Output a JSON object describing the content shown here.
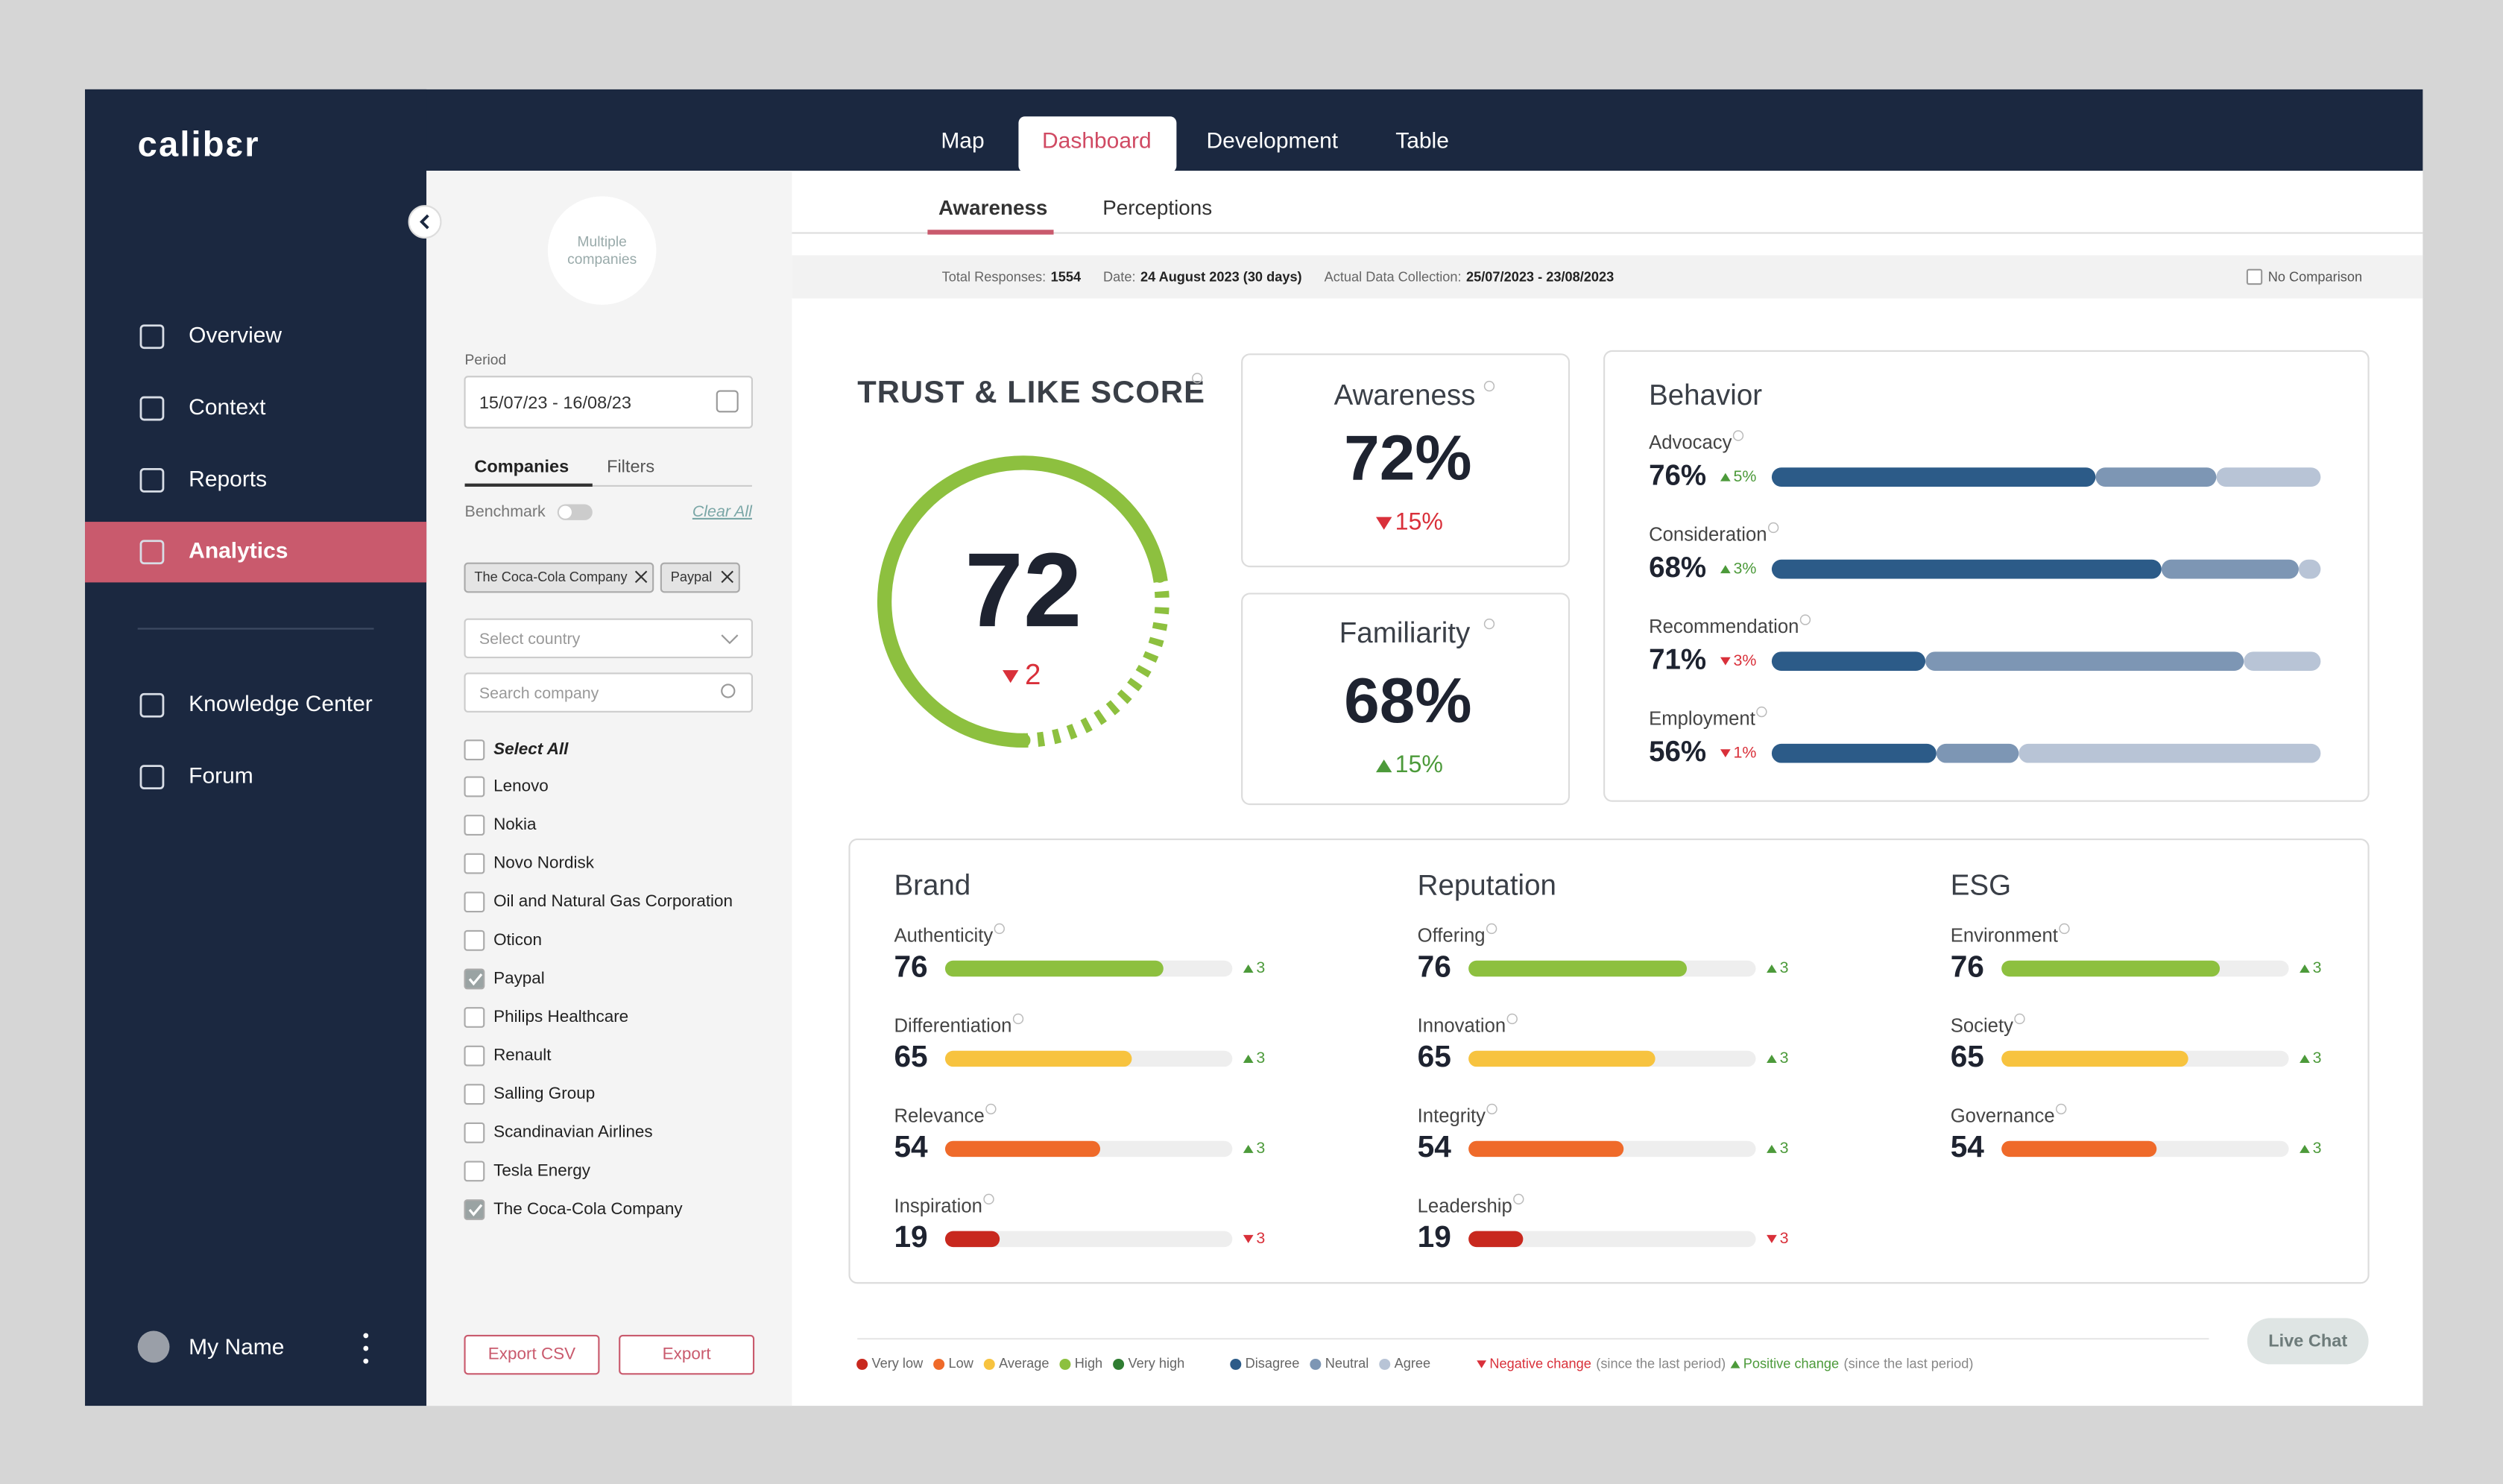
{
  "logo": "calibɛr",
  "sidebar": {
    "nav": [
      "Overview",
      "Context",
      "Reports",
      "Analytics",
      "Knowledge Center",
      "Forum"
    ],
    "active": 3,
    "user": "My Name"
  },
  "tabs": {
    "items": [
      "Map",
      "Dashboard",
      "Development",
      "Table"
    ],
    "active": 1
  },
  "subtabs": {
    "items": [
      "Awareness",
      "Perceptions"
    ],
    "active": 0
  },
  "info": {
    "responses_label": "Total Responses:",
    "responses": "1554",
    "date_label": "Date:",
    "date": "24 August 2023 (30 days)",
    "collection_label": "Actual Data Collection:",
    "collection": "25/07/2023 - 23/08/2023",
    "no_comparison": "No Comparison"
  },
  "filters": {
    "avatar": [
      "Multiple",
      "companies"
    ],
    "period_label": "Period",
    "period": "15/07/23 - 16/08/23",
    "tabs": [
      "Companies",
      "Filters"
    ],
    "benchmark": "Benchmark",
    "clear_all": "Clear All",
    "chips": [
      "The Coca-Cola Company",
      "Paypal"
    ],
    "country_placeholder": "Select country",
    "search_placeholder": "Search company",
    "select_all": "Select All",
    "companies": [
      {
        "name": "Lenovo",
        "checked": false
      },
      {
        "name": "Nokia",
        "checked": false
      },
      {
        "name": "Novo Nordisk",
        "checked": false
      },
      {
        "name": "Oil and Natural Gas Corporation",
        "checked": false
      },
      {
        "name": "Oticon",
        "checked": false
      },
      {
        "name": "Paypal",
        "checked": true
      },
      {
        "name": "Philips Healthcare",
        "checked": false
      },
      {
        "name": "Renault",
        "checked": false
      },
      {
        "name": "Salling Group",
        "checked": false
      },
      {
        "name": "Scandinavian Airlines",
        "checked": false
      },
      {
        "name": "Tesla Energy",
        "checked": false
      },
      {
        "name": "The Coca-Cola Company",
        "checked": true
      }
    ],
    "export_csv": "Export CSV",
    "export": "Export"
  },
  "trust": {
    "title": "TRUST & LIKE SCORE",
    "score": 72,
    "change": "2",
    "direction": "down"
  },
  "awareness": {
    "title": "Awareness",
    "value": "72%",
    "change": "15%",
    "direction": "down"
  },
  "familiarity": {
    "title": "Familiarity",
    "value": "68%",
    "change": "15%",
    "direction": "up"
  },
  "behavior": {
    "title": "Behavior",
    "items": [
      {
        "name": "Advocacy",
        "score": "76%",
        "change": "5%",
        "direction": "up",
        "segments": [
          59,
          22,
          19
        ]
      },
      {
        "name": "Consideration",
        "score": "68%",
        "change": "3%",
        "direction": "up",
        "segments": [
          71,
          25,
          4
        ]
      },
      {
        "name": "Recommendation",
        "score": "71%",
        "change": "3%",
        "direction": "down",
        "segments": [
          28,
          58,
          14
        ]
      },
      {
        "name": "Employment",
        "score": "56%",
        "change": "1%",
        "direction": "down",
        "segments": [
          30,
          15,
          55
        ]
      }
    ]
  },
  "blocks": [
    {
      "title": "Brand",
      "items": [
        {
          "name": "Authenticity",
          "score": 76,
          "change": "3",
          "direction": "up",
          "level": 3
        },
        {
          "name": "Differentiation",
          "score": 65,
          "change": "3",
          "direction": "up",
          "level": 2
        },
        {
          "name": "Relevance",
          "score": 54,
          "change": "3",
          "direction": "up",
          "level": 1
        },
        {
          "name": "Inspiration",
          "score": 19,
          "change": "3",
          "direction": "down",
          "level": 0
        }
      ]
    },
    {
      "title": "Reputation",
      "items": [
        {
          "name": "Offering",
          "score": 76,
          "change": "3",
          "direction": "up",
          "level": 3
        },
        {
          "name": "Innovation",
          "score": 65,
          "change": "3",
          "direction": "up",
          "level": 2
        },
        {
          "name": "Integrity",
          "score": 54,
          "change": "3",
          "direction": "up",
          "level": 1
        },
        {
          "name": "Leadership",
          "score": 19,
          "change": "3",
          "direction": "down",
          "level": 0
        }
      ]
    },
    {
      "title": "ESG",
      "items": [
        {
          "name": "Environment",
          "score": 76,
          "change": "3",
          "direction": "up",
          "level": 3
        },
        {
          "name": "Society",
          "score": 65,
          "change": "3",
          "direction": "up",
          "level": 2
        },
        {
          "name": "Governance",
          "score": 54,
          "change": "3",
          "direction": "up",
          "level": 1
        }
      ]
    }
  ],
  "legend": {
    "levels": [
      {
        "name": "Very low",
        "color": "#c8281e"
      },
      {
        "name": "Low",
        "color": "#ef6a2a"
      },
      {
        "name": "Average",
        "color": "#f7c33f"
      },
      {
        "name": "High",
        "color": "#8dc03f"
      },
      {
        "name": "Very high",
        "color": "#2f7d32"
      }
    ],
    "agreement": [
      {
        "name": "Disagree",
        "color": "#2c5b88"
      },
      {
        "name": "Neutral",
        "color": "#7d96b4"
      },
      {
        "name": "Agree",
        "color": "#b8c4d6"
      }
    ],
    "negative": "Negative change",
    "positive": "Positive change",
    "period_note": "(since the last period)"
  },
  "live_chat": "Live Chat"
}
